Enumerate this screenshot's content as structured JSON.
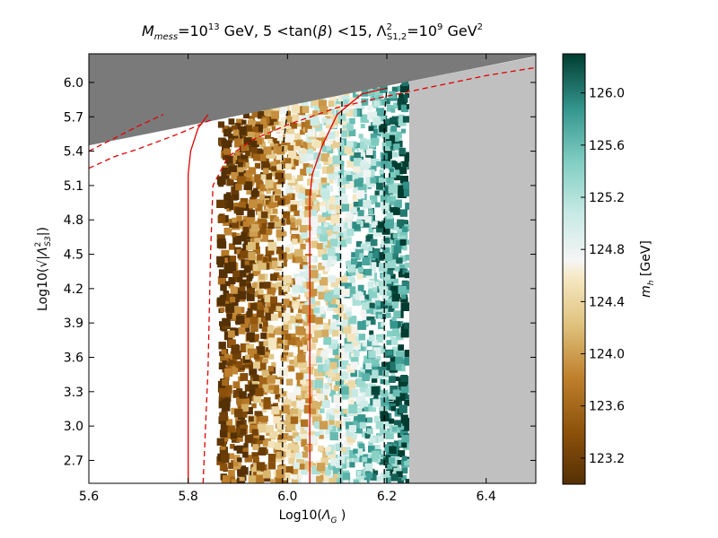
{
  "chart_data": {
    "type": "heatmap",
    "title": "M_mess = 10^13 GeV, 5 < tan(β) < 15, Λ²_S1,2 = 10^9 GeV²",
    "title_parts": {
      "t1": "M",
      "t1sub": "mess",
      "t2": "=10",
      "t2sup": "13",
      "t3": " GeV, 5 <tan(",
      "t3b": "β",
      "t3c": ") <15, ",
      "t4": "Λ",
      "t4sup": "2",
      "t4sub": "S1,2",
      "t5": "=10",
      "t5sup": "9",
      "t6": " GeV",
      "t6sup": "2"
    },
    "xlabel": "Log10(Λ_G )",
    "xlabel_parts": {
      "pre": "Log10(",
      "sym": "Λ",
      "sub": "G",
      "post": " )"
    },
    "ylabel": "Log10(√|Λ²_S3|)",
    "ylabel_parts": {
      "pre": "Log10(",
      "root": "√",
      "sym": "|Λ",
      "sup": "2",
      "sub": "S3",
      "post": "|)"
    },
    "xlim": [
      5.6,
      6.5
    ],
    "ylim": [
      2.5,
      6.25
    ],
    "xticks": [
      "5.6",
      "5.8",
      "6.0",
      "6.2",
      "6.4"
    ],
    "yticks": [
      "2.7",
      "3.0",
      "3.3",
      "3.6",
      "3.9",
      "4.2",
      "4.5",
      "4.8",
      "5.1",
      "5.4",
      "5.7",
      "6.0"
    ],
    "colorbar": {
      "label": "m_h [GeV]",
      "label_sym": "m",
      "label_sub": "h",
      "label_unit": "[GeV]",
      "range": [
        123.0,
        126.3
      ],
      "ticks": [
        "123.2",
        "123.6",
        "124.0",
        "124.4",
        "124.8",
        "125.2",
        "125.6",
        "126.0"
      ]
    },
    "regions": {
      "excluded_top": {
        "color": "#7a7a7a",
        "boundary": [
          [
            5.6,
            5.45
          ],
          [
            6.5,
            6.23
          ]
        ]
      },
      "excluded_right": {
        "color": "#c0c0c0",
        "x_min": 6.245
      },
      "scan_x_range": [
        5.865,
        6.245
      ]
    },
    "contours": {
      "solid_red": [
        [
          [
            5.8,
            2.5
          ],
          [
            5.8,
            5.2
          ],
          [
            5.805,
            5.4
          ],
          [
            5.82,
            5.6
          ],
          [
            5.84,
            5.72
          ]
        ],
        [
          [
            6.045,
            2.5
          ],
          [
            6.045,
            5.0
          ],
          [
            6.05,
            5.2
          ],
          [
            6.07,
            5.45
          ],
          [
            6.1,
            5.72
          ],
          [
            6.15,
            5.9
          ],
          [
            6.2,
            5.95
          ]
        ]
      ],
      "dashed_red": [
        [
          [
            5.6,
            5.25
          ],
          [
            5.65,
            5.35
          ],
          [
            5.7,
            5.42
          ],
          [
            5.78,
            5.55
          ],
          [
            5.85,
            5.68
          ]
        ],
        [
          [
            5.6,
            5.4
          ],
          [
            5.7,
            5.62
          ],
          [
            5.75,
            5.72
          ]
        ],
        [
          [
            5.83,
            2.5
          ],
          [
            5.84,
            3.5
          ],
          [
            5.845,
            4.5
          ],
          [
            5.85,
            5.1
          ],
          [
            5.88,
            5.35
          ],
          [
            5.93,
            5.5
          ],
          [
            6.0,
            5.63
          ],
          [
            6.1,
            5.78
          ],
          [
            6.2,
            5.88
          ],
          [
            6.3,
            5.97
          ],
          [
            6.4,
            6.06
          ],
          [
            6.5,
            6.13
          ]
        ]
      ],
      "dashed_black": [
        [
          [
            5.99,
            2.5
          ],
          [
            5.99,
            5.4
          ],
          [
            6.0,
            5.75
          ]
        ],
        [
          [
            6.107,
            2.5
          ],
          [
            6.107,
            5.5
          ],
          [
            6.11,
            5.85
          ]
        ],
        [
          [
            6.195,
            2.5
          ],
          [
            6.195,
            5.7
          ],
          [
            6.2,
            5.95
          ]
        ]
      ]
    }
  }
}
